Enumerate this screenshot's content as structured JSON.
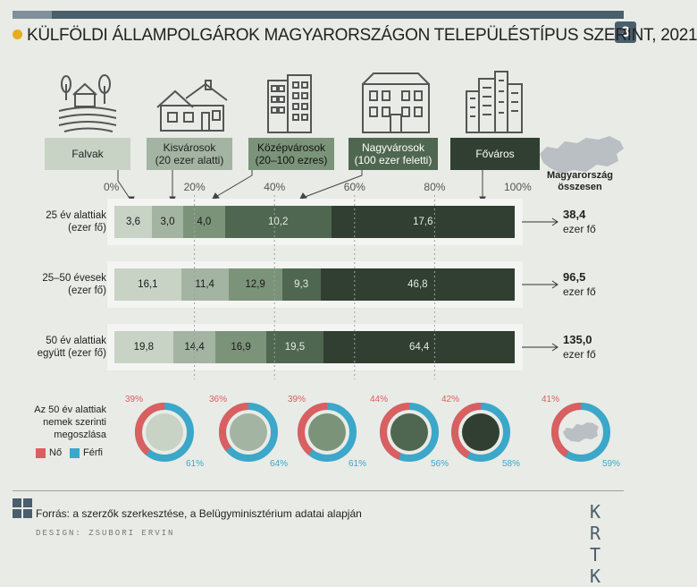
{
  "header": {
    "title": "KÜLFÖLDI ÁLLAMPOLGÁROK MAGYARORSZÁGON TELEPÜLÉSTÍPUS SZERINT, 2021",
    "badge": "3"
  },
  "categories": [
    {
      "name": "Falvak",
      "icon": "village-house-icon"
    },
    {
      "name": "Kisvárosok\n(20 ezer alatti)",
      "icon": "small-town-house-icon"
    },
    {
      "name": "Középvárosok\n(20–100 ezres)",
      "icon": "medium-town-block-icon"
    },
    {
      "name": "Nagyvárosok\n(100 ezer feletti)",
      "icon": "large-city-building-icon"
    },
    {
      "name": "Főváros",
      "icon": "capital-skyscrapers-icon"
    }
  ],
  "colors": [
    "#c8d3c6",
    "#a3b4a2",
    "#7b9479",
    "#4f6750",
    "#303f31"
  ],
  "hu_label": "Magyarország összesen",
  "chart_data": {
    "type": "bar",
    "stacked": "percent",
    "axis_ticks": [
      "0%",
      "20%",
      "40%",
      "60%",
      "80%",
      "100%"
    ],
    "rows": [
      {
        "label": "25 év alattiak\n(ezer fő)",
        "values": [
          3.6,
          3.0,
          4.0,
          10.2,
          17.6
        ],
        "labels": [
          "3,6",
          "3,0",
          "4,0",
          "10,2",
          "17,6"
        ],
        "total": "38,4",
        "unit": "ezer fő"
      },
      {
        "label": "25–50 évesek\n(ezer fő)",
        "values": [
          16.1,
          11.4,
          12.9,
          9.3,
          46.8
        ],
        "labels": [
          "16,1",
          "11,4",
          "12,9",
          "9,3",
          "46,8"
        ],
        "total": "96,5",
        "unit": "ezer fő"
      },
      {
        "label": "50 év alattiak\negyütt (ezer fő)",
        "values": [
          19.8,
          14.4,
          16.9,
          19.5,
          64.4
        ],
        "labels": [
          "19,8",
          "14,4",
          "16,9",
          "19,5",
          "64,4"
        ],
        "total": "135,0",
        "unit": "ezer fő"
      }
    ],
    "gender": {
      "title": "Az 50 év alattiak\nnemek szerinti\nmegoszlása",
      "female_label": "Nő",
      "male_label": "Férfi",
      "female_color": "#d95f61",
      "male_color": "#3ba7c9",
      "series": [
        {
          "female": 39,
          "male": 61,
          "female_label": "39%",
          "male_label": "61%"
        },
        {
          "female": 36,
          "male": 64,
          "female_label": "36%",
          "male_label": "64%"
        },
        {
          "female": 39,
          "male": 61,
          "female_label": "39%",
          "male_label": "61%"
        },
        {
          "female": 44,
          "male": 56,
          "female_label": "44%",
          "male_label": "56%"
        },
        {
          "female": 42,
          "male": 58,
          "female_label": "42%",
          "male_label": "58%"
        },
        {
          "female": 41,
          "male": 59,
          "female_label": "41%",
          "male_label": "59%"
        }
      ]
    }
  },
  "footer": {
    "source": "Forrás: a szerzők szerkesztése, a Belügyminisztérium adatai alapján",
    "design": "DESIGN: ZSUBORI ERVIN",
    "logo_top": "K R",
    "logo_bottom": "T K"
  }
}
